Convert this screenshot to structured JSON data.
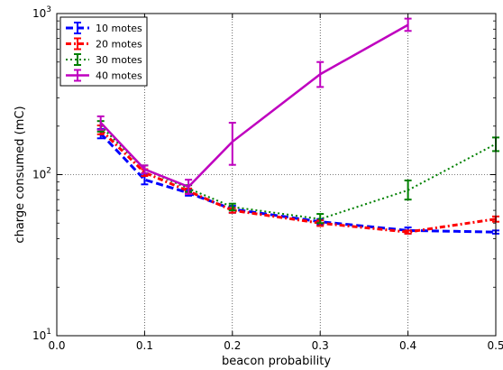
{
  "chart_data": {
    "type": "line",
    "xlabel": "beacon probability",
    "ylabel": "charge consumed (mC)",
    "xlim": [
      0.0,
      0.5
    ],
    "ylim": [
      10,
      1000
    ],
    "yscale": "log",
    "grid": true,
    "legend_position": "top-left",
    "x_ticks": [
      0.0,
      0.1,
      0.2,
      0.3,
      0.4,
      0.5
    ],
    "x_tick_labels": [
      "0.0",
      "0.1",
      "0.2",
      "0.3",
      "0.4",
      "0.5"
    ],
    "y_ticks": [
      {
        "value": 10,
        "base": "10",
        "exp": "1"
      },
      {
        "value": 100,
        "base": "10",
        "exp": "2"
      },
      {
        "value": 1000,
        "base": "10",
        "exp": "3"
      }
    ],
    "series": [
      {
        "name": "10 motes",
        "color": "#0000ff",
        "dash": "8,4",
        "width": 3,
        "points": [
          {
            "x": 0.05,
            "y": 180,
            "lo": 168,
            "hi": 192
          },
          {
            "x": 0.1,
            "y": 93,
            "lo": 87,
            "hi": 99
          },
          {
            "x": 0.15,
            "y": 77,
            "lo": 74,
            "hi": 80
          },
          {
            "x": 0.2,
            "y": 61,
            "lo": 58,
            "hi": 64
          },
          {
            "x": 0.3,
            "y": 51,
            "lo": 49,
            "hi": 53
          },
          {
            "x": 0.4,
            "y": 45,
            "lo": 43,
            "hi": 47
          },
          {
            "x": 0.5,
            "y": 44,
            "lo": 43,
            "hi": 45
          }
        ]
      },
      {
        "name": "20 motes",
        "color": "#ff0000",
        "dash": "6,3,2,3",
        "width": 3,
        "points": [
          {
            "x": 0.05,
            "y": 190,
            "lo": 178,
            "hi": 202
          },
          {
            "x": 0.1,
            "y": 103,
            "lo": 98,
            "hi": 108
          },
          {
            "x": 0.15,
            "y": 79,
            "lo": 76,
            "hi": 82
          },
          {
            "x": 0.2,
            "y": 60,
            "lo": 58,
            "hi": 62
          },
          {
            "x": 0.3,
            "y": 50,
            "lo": 48,
            "hi": 52
          },
          {
            "x": 0.4,
            "y": 44,
            "lo": 43,
            "hi": 45
          },
          {
            "x": 0.5,
            "y": 53,
            "lo": 51,
            "hi": 55
          }
        ]
      },
      {
        "name": "30 motes",
        "color": "#008000",
        "dash": "2,3",
        "width": 2,
        "points": [
          {
            "x": 0.05,
            "y": 200,
            "lo": 185,
            "hi": 215
          },
          {
            "x": 0.1,
            "y": 108,
            "lo": 102,
            "hi": 114
          },
          {
            "x": 0.15,
            "y": 82,
            "lo": 78,
            "hi": 86
          },
          {
            "x": 0.2,
            "y": 63,
            "lo": 60,
            "hi": 66
          },
          {
            "x": 0.3,
            "y": 53,
            "lo": 50,
            "hi": 57
          },
          {
            "x": 0.4,
            "y": 80,
            "lo": 70,
            "hi": 92
          },
          {
            "x": 0.5,
            "y": 155,
            "lo": 140,
            "hi": 170
          }
        ]
      },
      {
        "name": "40 motes",
        "color": "#bf00bf",
        "dash": "",
        "width": 2.5,
        "points": [
          {
            "x": 0.05,
            "y": 210,
            "lo": 190,
            "hi": 230
          },
          {
            "x": 0.1,
            "y": 108,
            "lo": 102,
            "hi": 114
          },
          {
            "x": 0.15,
            "y": 84,
            "lo": 76,
            "hi": 93
          },
          {
            "x": 0.2,
            "y": 160,
            "lo": 115,
            "hi": 210
          },
          {
            "x": 0.3,
            "y": 420,
            "lo": 350,
            "hi": 500
          },
          {
            "x": 0.4,
            "y": 850,
            "lo": 780,
            "hi": 930
          }
        ]
      }
    ]
  }
}
